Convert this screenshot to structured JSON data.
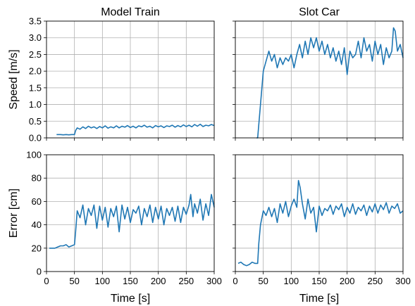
{
  "chart_data": [
    {
      "type": "line",
      "title": "Model Train",
      "xlabel": "",
      "ylabel": "Speed [m/s]",
      "xlim": [
        0,
        300
      ],
      "ylim": [
        0,
        3.5
      ],
      "xticks": [
        0,
        50,
        100,
        150,
        200,
        250,
        300
      ],
      "yticks": [
        "0.0",
        "0.5",
        "1.0",
        "1.5",
        "2.0",
        "2.5",
        "3.0",
        "3.5"
      ],
      "show_xtick_labels": false,
      "show_ytick_labels": true,
      "grid": true,
      "color": "#1f77b4",
      "series": [
        {
          "x": [
            18,
            25,
            30,
            35,
            40,
            45,
            50,
            52,
            55,
            60,
            65,
            70,
            75,
            80,
            85,
            90,
            95,
            100,
            105,
            110,
            115,
            120,
            125,
            130,
            135,
            140,
            145,
            150,
            155,
            160,
            165,
            170,
            175,
            180,
            185,
            190,
            195,
            200,
            205,
            210,
            215,
            220,
            225,
            230,
            235,
            240,
            245,
            250,
            255,
            260,
            265,
            270,
            275,
            280,
            285,
            290,
            295,
            300
          ],
          "y": [
            0.1,
            0.1,
            0.09,
            0.1,
            0.09,
            0.1,
            0.1,
            0.22,
            0.3,
            0.26,
            0.33,
            0.28,
            0.35,
            0.3,
            0.33,
            0.28,
            0.34,
            0.3,
            0.36,
            0.29,
            0.33,
            0.3,
            0.36,
            0.3,
            0.35,
            0.32,
            0.37,
            0.31,
            0.35,
            0.3,
            0.36,
            0.33,
            0.38,
            0.32,
            0.35,
            0.3,
            0.37,
            0.33,
            0.36,
            0.31,
            0.36,
            0.34,
            0.38,
            0.32,
            0.37,
            0.33,
            0.39,
            0.34,
            0.38,
            0.33,
            0.4,
            0.35,
            0.41,
            0.34,
            0.38,
            0.36,
            0.4,
            0.37
          ]
        }
      ]
    },
    {
      "type": "line",
      "title": "Slot Car",
      "xlabel": "",
      "ylabel": "",
      "xlim": [
        0,
        300
      ],
      "ylim": [
        0,
        3.5
      ],
      "xticks": [
        0,
        50,
        100,
        150,
        200,
        250,
        300
      ],
      "yticks": [
        "0.0",
        "0.5",
        "1.0",
        "1.5",
        "2.0",
        "2.5",
        "3.0",
        "3.5"
      ],
      "show_xtick_labels": false,
      "show_ytick_labels": false,
      "grid": true,
      "color": "#1f77b4",
      "series": [
        {
          "x": [
            38,
            40,
            45,
            50,
            55,
            60,
            65,
            70,
            75,
            80,
            85,
            90,
            95,
            100,
            105,
            110,
            115,
            120,
            125,
            130,
            135,
            140,
            145,
            150,
            155,
            160,
            165,
            170,
            175,
            180,
            185,
            190,
            195,
            200,
            205,
            210,
            215,
            220,
            225,
            230,
            235,
            240,
            245,
            250,
            255,
            260,
            265,
            270,
            275,
            280,
            283,
            286,
            290,
            295,
            300
          ],
          "y": [
            0.0,
            0.0,
            1.0,
            2.0,
            2.3,
            2.6,
            2.3,
            2.5,
            2.1,
            2.4,
            2.2,
            2.4,
            2.3,
            2.5,
            2.1,
            2.5,
            2.8,
            2.4,
            2.9,
            2.5,
            3.0,
            2.7,
            3.0,
            2.6,
            2.9,
            2.5,
            2.8,
            2.4,
            2.7,
            2.3,
            2.6,
            2.2,
            2.7,
            1.9,
            2.6,
            2.4,
            2.5,
            2.9,
            2.4,
            3.0,
            2.6,
            2.8,
            2.3,
            2.9,
            2.5,
            2.8,
            2.2,
            2.7,
            2.4,
            2.6,
            3.3,
            3.2,
            2.6,
            2.8,
            2.4
          ]
        }
      ]
    },
    {
      "type": "line",
      "title": "",
      "xlabel": "Time [s]",
      "ylabel": "Error [cm]",
      "xlim": [
        0,
        300
      ],
      "ylim": [
        0,
        100
      ],
      "xticks": [
        0,
        50,
        100,
        150,
        200,
        250,
        300
      ],
      "yticks": [
        "0",
        "20",
        "40",
        "60",
        "80",
        "100"
      ],
      "show_xtick_labels": true,
      "show_ytick_labels": true,
      "grid": true,
      "color": "#1f77b4",
      "series": [
        {
          "x": [
            5,
            10,
            15,
            20,
            25,
            30,
            35,
            40,
            45,
            50,
            52,
            55,
            60,
            65,
            70,
            75,
            80,
            85,
            90,
            95,
            100,
            105,
            110,
            115,
            120,
            125,
            130,
            135,
            140,
            145,
            150,
            155,
            160,
            165,
            170,
            175,
            180,
            185,
            190,
            195,
            200,
            205,
            210,
            215,
            220,
            225,
            230,
            235,
            240,
            245,
            250,
            255,
            258,
            262,
            265,
            270,
            275,
            280,
            285,
            290,
            295,
            300
          ],
          "y": [
            20,
            20,
            20,
            21,
            22,
            22,
            23,
            21,
            22,
            23,
            34,
            52,
            46,
            57,
            40,
            54,
            48,
            57,
            37,
            56,
            44,
            55,
            38,
            54,
            47,
            56,
            34,
            57,
            45,
            55,
            42,
            53,
            50,
            56,
            40,
            54,
            47,
            57,
            42,
            55,
            45,
            56,
            40,
            54,
            48,
            55,
            43,
            56,
            42,
            55,
            49,
            57,
            66,
            47,
            58,
            50,
            62,
            44,
            58,
            48,
            66,
            55
          ]
        }
      ]
    },
    {
      "type": "line",
      "title": "",
      "xlabel": "Time [s]",
      "ylabel": "",
      "xlim": [
        0,
        300
      ],
      "ylim": [
        0,
        100
      ],
      "xticks": [
        0,
        50,
        100,
        150,
        200,
        250,
        300
      ],
      "yticks": [
        "0",
        "20",
        "40",
        "60",
        "80",
        "100"
      ],
      "show_xtick_labels": true,
      "show_ytick_labels": false,
      "grid": true,
      "color": "#1f77b4",
      "series": [
        {
          "x": [
            5,
            10,
            15,
            20,
            25,
            30,
            35,
            40,
            42,
            45,
            50,
            55,
            60,
            65,
            70,
            75,
            80,
            85,
            90,
            95,
            100,
            105,
            110,
            113,
            116,
            120,
            125,
            130,
            135,
            140,
            145,
            150,
            155,
            160,
            165,
            170,
            175,
            180,
            185,
            190,
            195,
            200,
            205,
            210,
            215,
            220,
            225,
            230,
            235,
            240,
            245,
            250,
            255,
            260,
            265,
            270,
            275,
            280,
            285,
            290,
            295,
            300
          ],
          "y": [
            7,
            8,
            6,
            5,
            6,
            8,
            7,
            7,
            24,
            40,
            52,
            48,
            55,
            47,
            54,
            42,
            58,
            50,
            60,
            47,
            56,
            62,
            55,
            78,
            72,
            58,
            45,
            62,
            50,
            55,
            34,
            56,
            48,
            54,
            52,
            57,
            49,
            56,
            53,
            58,
            47,
            55,
            50,
            58,
            49,
            55,
            52,
            57,
            48,
            56,
            51,
            58,
            50,
            57,
            53,
            59,
            50,
            56,
            54,
            58,
            50,
            52
          ]
        }
      ]
    }
  ]
}
